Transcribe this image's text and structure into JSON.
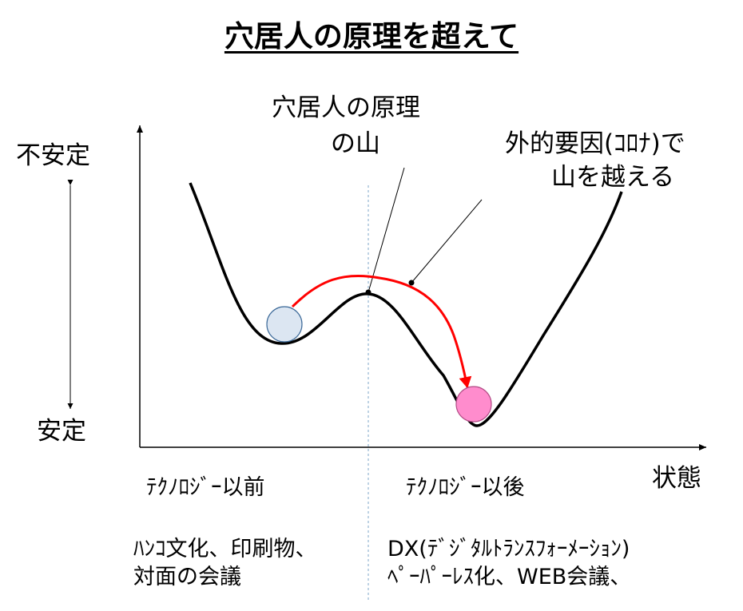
{
  "title": "穴居人の原理を超えて",
  "y_axis": {
    "top_label": "不安定",
    "bottom_label": "安定"
  },
  "x_axis": {
    "label": "状態"
  },
  "annotations": {
    "mountain_line1": "穴居人の原理",
    "mountain_line2": "の山",
    "external_line1": "外的要因(ｺﾛﾅ)で",
    "external_line2": "山を越える"
  },
  "left_section": {
    "heading": "ﾃｸﾉﾛｼﾞｰ以前",
    "line1": "ﾊﾝｺ文化、印刷物、",
    "line2": "対面の会議"
  },
  "right_section": {
    "heading": "ﾃｸﾉﾛｼﾞｰ以後",
    "line1": "DX(ﾃﾞｼﾞﾀﾙﾄﾗﾝｽﾌｫｰﾒｰｼｮﾝ)",
    "line2": "ﾍﾟｰﾊﾟｰﾚｽ化、WEB会議、"
  },
  "colors": {
    "arrow": "#ff0000",
    "ball_before": "#dce6f2",
    "ball_after": "#ff8ccd",
    "divider": "#7fa7c9"
  }
}
